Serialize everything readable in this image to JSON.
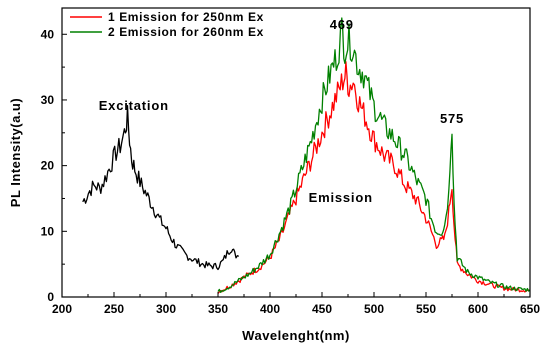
{
  "chart_data": {
    "type": "line",
    "xlabel": "Wavelenght(nm)",
    "ylabel": "PL Intensity(a.u)",
    "xlim": [
      200,
      650
    ],
    "ylim": [
      0,
      44
    ],
    "xticks": [
      200,
      250,
      300,
      350,
      400,
      450,
      500,
      550,
      600,
      650
    ],
    "yticks": [
      0,
      10,
      20,
      30,
      40
    ],
    "grid": false,
    "legend_position": "top-left",
    "legend": [
      {
        "number": "1",
        "label": "Emission for 250nm Ex",
        "color": "#ff0000"
      },
      {
        "number": "2",
        "label": "Emission for 260nm Ex",
        "color": "#008000"
      }
    ],
    "annotations": [
      {
        "text": "Excitation",
        "x": 269,
        "y": 28.5
      },
      {
        "text": "Emission",
        "x": 468,
        "y": 14.5
      },
      {
        "text": "469",
        "x": 469,
        "y": 40.8
      },
      {
        "text": "575",
        "x": 575,
        "y": 26.5
      }
    ],
    "series": [
      {
        "name": "",
        "color": "#000000",
        "x": [
          220,
          224,
          228,
          232,
          236,
          240,
          244,
          248,
          252,
          256,
          260,
          263,
          265,
          267,
          270,
          275,
          280,
          285,
          290,
          295,
          300,
          305,
          310,
          315,
          320,
          325,
          330,
          335,
          340,
          345,
          350,
          355,
          360,
          363,
          366,
          370
        ],
        "y": [
          14.5,
          15.5,
          16.5,
          17,
          16.5,
          17.5,
          19,
          20.5,
          22,
          23,
          25,
          27.3,
          24,
          21,
          19.5,
          17.5,
          16,
          14.5,
          13,
          11.5,
          10.5,
          9,
          7.8,
          7,
          6.3,
          5.8,
          5.4,
          5,
          4.8,
          4.7,
          4.7,
          5.5,
          7,
          7.5,
          6.5,
          6.2
        ]
      },
      {
        "name": "Emission for 250nm Ex",
        "color": "#ff0000",
        "x": [
          350,
          360,
          370,
          380,
          390,
          400,
          410,
          420,
          430,
          440,
          450,
          460,
          465,
          470,
          473,
          476,
          480,
          485,
          490,
          500,
          510,
          520,
          530,
          540,
          550,
          555,
          560,
          565,
          568,
          572,
          574,
          575,
          577,
          580,
          590,
          600,
          610,
          620,
          630,
          640,
          650
        ],
        "y": [
          0.8,
          1.5,
          2.5,
          3.5,
          4.5,
          6,
          9,
          13,
          17,
          21,
          25,
          29,
          31,
          33,
          34,
          32,
          33,
          30,
          28,
          24,
          21.5,
          20,
          17,
          15,
          12,
          10,
          8,
          8.5,
          9,
          13,
          16,
          17,
          11,
          5,
          3.5,
          2.5,
          2,
          1.5,
          1.2,
          1.1,
          1
        ]
      },
      {
        "name": "Emission for 260nm Ex",
        "color": "#008000",
        "x": [
          350,
          360,
          370,
          380,
          390,
          400,
          410,
          420,
          430,
          440,
          450,
          460,
          465,
          469,
          472,
          476,
          480,
          485,
          490,
          500,
          510,
          520,
          530,
          540,
          550,
          555,
          560,
          565,
          568,
          572,
          574,
          575,
          577,
          580,
          590,
          600,
          610,
          620,
          630,
          640,
          650
        ],
        "y": [
          0.8,
          1.5,
          2.5,
          3.5,
          4.8,
          6.5,
          10,
          14,
          19,
          24,
          30,
          35,
          37,
          40.5,
          38,
          39,
          38,
          35,
          34,
          29,
          26,
          24,
          21.5,
          18,
          15,
          12,
          10,
          10,
          11,
          16,
          24,
          26,
          14,
          6,
          3.8,
          3,
          2.3,
          1.8,
          1.4,
          1.2,
          1.1
        ]
      }
    ]
  }
}
